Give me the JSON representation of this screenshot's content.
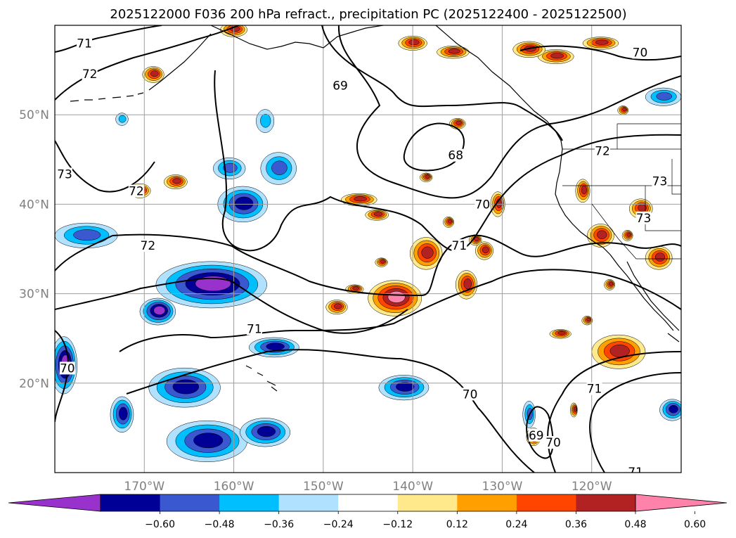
{
  "title": "2025122000 F036 200 hPa refract., precipitation PC (2025122400 - 2025122500)",
  "chart_data": {
    "type": "map",
    "title": "2025122000 F036 200 hPa refract., precipitation PC (2025122400 - 2025122500)",
    "lon_range": [
      -180,
      -110
    ],
    "lat_range": [
      10,
      60
    ],
    "grid": true,
    "lon_ticks": [
      {
        "value": -170,
        "label": "170°W"
      },
      {
        "value": -160,
        "label": "160°W"
      },
      {
        "value": -150,
        "label": "150°W"
      },
      {
        "value": -140,
        "label": "140°W"
      },
      {
        "value": -130,
        "label": "130°W"
      },
      {
        "value": -120,
        "label": "120°W"
      }
    ],
    "lat_ticks": [
      {
        "value": 20,
        "label": "20°N"
      },
      {
        "value": 30,
        "label": "30°N"
      },
      {
        "value": 40,
        "label": "40°N"
      },
      {
        "value": 50,
        "label": "50°N"
      }
    ],
    "contour_labels": [
      {
        "text": "71",
        "lon": -176.7,
        "lat": 57.9
      },
      {
        "text": "72",
        "lon": -176.1,
        "lat": 54.5
      },
      {
        "text": "73",
        "lon": -178.9,
        "lat": 43.3
      },
      {
        "text": "72",
        "lon": -170.9,
        "lat": 41.4
      },
      {
        "text": "72",
        "lon": -169.6,
        "lat": 35.3
      },
      {
        "text": "69",
        "lon": -148.1,
        "lat": 53.2
      },
      {
        "text": "68",
        "lon": -135.2,
        "lat": 45.4
      },
      {
        "text": "70",
        "lon": -132.2,
        "lat": 39.9
      },
      {
        "text": "71",
        "lon": -134.8,
        "lat": 35.3
      },
      {
        "text": "72",
        "lon": -118.8,
        "lat": 45.9
      },
      {
        "text": "70",
        "lon": -114.6,
        "lat": 56.9
      },
      {
        "text": "73",
        "lon": -112.4,
        "lat": 42.5
      },
      {
        "text": "73",
        "lon": -114.2,
        "lat": 38.4
      },
      {
        "text": "71",
        "lon": -157.7,
        "lat": 26.0
      },
      {
        "text": "70",
        "lon": -178.6,
        "lat": 21.6
      },
      {
        "text": "70",
        "lon": -133.6,
        "lat": 18.7
      },
      {
        "text": "71",
        "lon": -119.7,
        "lat": 19.3
      },
      {
        "text": "69",
        "lon": -126.2,
        "lat": 14.1
      },
      {
        "text": "70",
        "lon": -124.3,
        "lat": 13.3
      },
      {
        "text": "71",
        "lon": -115.1,
        "lat": 10.0
      }
    ],
    "colorbar": {
      "ticks": [
        "−0.60",
        "−0.48",
        "−0.36",
        "−0.24",
        "−0.12",
        "0.12",
        "0.24",
        "0.36",
        "0.48",
        "0.60"
      ],
      "colors": [
        "#9932cc",
        "#000096",
        "#3a58cf",
        "#00bfff",
        "#b0e2ff",
        "#ffffff",
        "#ffe98a",
        "#ffa000",
        "#ff4500",
        "#b22222",
        "#ff82ab"
      ],
      "extend": "both"
    },
    "precip_negative": [
      {
        "lon": -162.5,
        "lat": 31.0,
        "rlon": 6.2,
        "rlat": 2.6,
        "level": 4
      },
      {
        "lon": -168.5,
        "lat": 28.0,
        "rlon": 2.0,
        "rlat": 1.5,
        "level": 4
      },
      {
        "lon": -165.5,
        "lat": 19.5,
        "rlon": 4.0,
        "rlat": 2.2,
        "level": 3
      },
      {
        "lon": -163.0,
        "lat": 13.5,
        "rlon": 4.5,
        "rlat": 2.3,
        "level": 3
      },
      {
        "lon": -156.5,
        "lat": 14.5,
        "rlon": 2.8,
        "rlat": 1.6,
        "level": 3
      },
      {
        "lon": -159.0,
        "lat": 40.0,
        "rlon": 2.8,
        "rlat": 2.0,
        "level": 3
      },
      {
        "lon": -155.0,
        "lat": 44.0,
        "rlon": 2.0,
        "rlat": 1.8,
        "level": 2
      },
      {
        "lon": -160.5,
        "lat": 44.0,
        "rlon": 1.8,
        "rlat": 1.2,
        "level": 2
      },
      {
        "lon": -156.5,
        "lat": 49.3,
        "rlon": 1.0,
        "rlat": 1.3,
        "level": 1
      },
      {
        "lon": -176.5,
        "lat": 36.5,
        "rlon": 3.5,
        "rlat": 1.4,
        "level": 2
      },
      {
        "lon": -179.0,
        "lat": 22.0,
        "rlon": 1.5,
        "rlat": 3.2,
        "level": 4
      },
      {
        "lon": -172.5,
        "lat": 16.5,
        "rlon": 1.3,
        "rlat": 2.0,
        "level": 3
      },
      {
        "lon": -155.5,
        "lat": 24.0,
        "rlon": 2.8,
        "rlat": 1.1,
        "level": 3
      },
      {
        "lon": -141.0,
        "lat": 19.5,
        "rlon": 2.8,
        "rlat": 1.4,
        "level": 3
      },
      {
        "lon": -111.0,
        "lat": 17.0,
        "rlon": 1.4,
        "rlat": 1.2,
        "level": 3
      },
      {
        "lon": -127.0,
        "lat": 16.5,
        "rlon": 0.7,
        "rlat": 1.5,
        "level": 2
      },
      {
        "lon": -112.0,
        "lat": 52.0,
        "rlon": 2.0,
        "rlat": 1.0,
        "level": 2
      },
      {
        "lon": -172.5,
        "lat": 49.5,
        "rlon": 0.7,
        "rlat": 0.7,
        "level": 1
      }
    ],
    "precip_positive": [
      {
        "lon": -142.0,
        "lat": 29.5,
        "rlon": 3.0,
        "rlat": 2.0,
        "level": 4
      },
      {
        "lon": -138.5,
        "lat": 34.5,
        "rlon": 1.8,
        "rlat": 1.8,
        "level": 3
      },
      {
        "lon": -134.0,
        "lat": 31.0,
        "rlon": 1.2,
        "rlat": 1.6,
        "level": 3
      },
      {
        "lon": -132.0,
        "lat": 34.8,
        "rlon": 1.0,
        "rlat": 1.0,
        "level": 3
      },
      {
        "lon": -146.0,
        "lat": 40.5,
        "rlon": 2.0,
        "rlat": 0.7,
        "level": 3
      },
      {
        "lon": -144.0,
        "lat": 38.8,
        "rlon": 1.3,
        "rlat": 0.6,
        "level": 3
      },
      {
        "lon": -117.0,
        "lat": 23.5,
        "rlon": 3.0,
        "rlat": 1.9,
        "level": 3
      },
      {
        "lon": -112.5,
        "lat": 34.0,
        "rlon": 1.5,
        "rlat": 1.3,
        "level": 3
      },
      {
        "lon": -114.5,
        "lat": 39.5,
        "rlon": 1.3,
        "rlat": 1.1,
        "level": 3
      },
      {
        "lon": -119.0,
        "lat": 36.5,
        "rlon": 1.5,
        "rlat": 1.3,
        "level": 3
      },
      {
        "lon": -121.0,
        "lat": 41.5,
        "rlon": 0.8,
        "rlat": 1.3,
        "level": 3
      },
      {
        "lon": -126.5,
        "lat": 14.0,
        "rlon": 0.8,
        "rlat": 1.0,
        "level": 4
      },
      {
        "lon": -166.5,
        "lat": 42.5,
        "rlon": 1.3,
        "rlat": 0.8,
        "level": 3
      },
      {
        "lon": -170.5,
        "lat": 41.5,
        "rlon": 1.2,
        "rlat": 0.8,
        "level": 3
      },
      {
        "lon": -169.0,
        "lat": 54.5,
        "rlon": 1.2,
        "rlat": 0.9,
        "level": 3
      },
      {
        "lon": -160.0,
        "lat": 59.5,
        "rlon": 1.5,
        "rlat": 0.8,
        "level": 3
      },
      {
        "lon": -135.5,
        "lat": 57.0,
        "rlon": 1.8,
        "rlat": 0.7,
        "level": 3
      },
      {
        "lon": -140.0,
        "lat": 58.0,
        "rlon": 1.6,
        "rlat": 0.8,
        "level": 3
      },
      {
        "lon": -124.0,
        "lat": 56.5,
        "rlon": 2.0,
        "rlat": 0.8,
        "level": 3
      },
      {
        "lon": -119.0,
        "lat": 58.0,
        "rlon": 2.0,
        "rlat": 0.7,
        "level": 3
      },
      {
        "lon": -127.0,
        "lat": 57.3,
        "rlon": 1.8,
        "rlat": 0.9,
        "level": 3
      },
      {
        "lon": -116.5,
        "lat": 50.5,
        "rlon": 0.6,
        "rlat": 0.5,
        "level": 3
      },
      {
        "lon": -135.0,
        "lat": 49.0,
        "rlon": 0.9,
        "rlat": 0.6,
        "level": 3
      },
      {
        "lon": -138.5,
        "lat": 43.0,
        "rlon": 0.7,
        "rlat": 0.5,
        "level": 3
      },
      {
        "lon": -148.5,
        "lat": 28.5,
        "rlon": 1.2,
        "rlat": 0.8,
        "level": 3
      },
      {
        "lon": -146.5,
        "lat": 30.5,
        "rlon": 1.0,
        "rlat": 0.5,
        "level": 3
      },
      {
        "lon": -130.5,
        "lat": 40.0,
        "rlon": 0.8,
        "rlat": 1.4,
        "level": 3
      },
      {
        "lon": -133.0,
        "lat": 36.0,
        "rlon": 0.7,
        "rlat": 0.6,
        "level": 3
      },
      {
        "lon": -136.0,
        "lat": 38.0,
        "rlon": 0.6,
        "rlat": 0.6,
        "level": 3
      },
      {
        "lon": -120.5,
        "lat": 27.0,
        "rlon": 0.6,
        "rlat": 0.5,
        "level": 3
      },
      {
        "lon": -118.0,
        "lat": 31.0,
        "rlon": 0.6,
        "rlat": 0.6,
        "level": 3
      },
      {
        "lon": -123.5,
        "lat": 25.5,
        "rlon": 1.2,
        "rlat": 0.5,
        "level": 3
      },
      {
        "lon": -143.5,
        "lat": 33.5,
        "rlon": 0.7,
        "rlat": 0.5,
        "level": 3
      },
      {
        "lon": -116.0,
        "lat": 36.5,
        "rlon": 0.6,
        "rlat": 0.6,
        "level": 3
      },
      {
        "lon": -122.0,
        "lat": 17.0,
        "rlon": 0.4,
        "rlat": 0.8,
        "level": 3
      }
    ]
  }
}
